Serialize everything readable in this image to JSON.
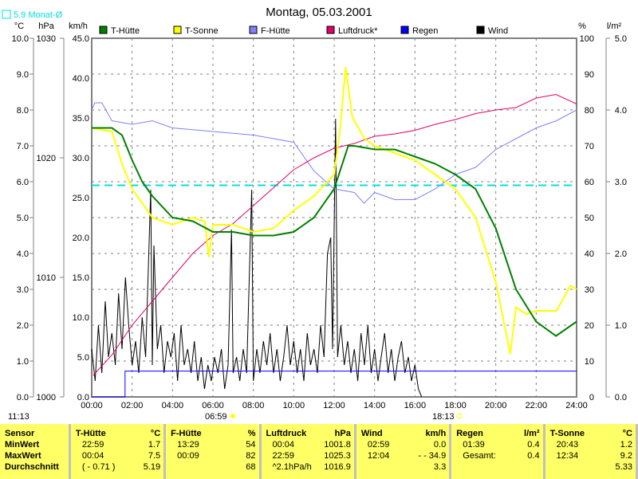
{
  "title": "Montag, 05.03.2001",
  "monthly_avg_label": "5.9 Monat-Ø",
  "colors": {
    "t_huette": "#008000",
    "t_sonne": "#ffff00",
    "f_huette": "#8080ff",
    "luftdruck": "#e0006a",
    "regen": "#0000ff",
    "wind": "#000000",
    "avg": "#00e0e0"
  },
  "time_left": "11:13",
  "sunrise": "06:59",
  "sunset": "18:13",
  "chart_data": {
    "type": "line",
    "title": "Montag, 05.03.2001",
    "legend": [
      "T-Hütte",
      "T-Sonne",
      "F-Hütte",
      "Luftdruck*",
      "Regen",
      "Wind"
    ],
    "legend_position": "top",
    "axes": {
      "celsius": {
        "label": "°C",
        "range": [
          0,
          10
        ],
        "ticks": [
          "0.0",
          "1.0",
          "2.0",
          "3.0",
          "4.0",
          "5.0",
          "6.0",
          "7.0",
          "8.0",
          "9.0",
          "10.0"
        ]
      },
      "hpa": {
        "label": "hPa",
        "range": [
          1000,
          1030
        ],
        "ticks": [
          "1000",
          "1010",
          "1020",
          "1030"
        ]
      },
      "kmh": {
        "label": "km/h",
        "range": [
          0,
          45
        ],
        "ticks": [
          "0.0",
          "5.0",
          "10.0",
          "15.0",
          "20.0",
          "25.0",
          "30.0",
          "35.0",
          "40.0",
          "45.0"
        ]
      },
      "percent": {
        "label": "%",
        "range": [
          0,
          100
        ],
        "ticks": [
          "0",
          "10",
          "20",
          "30",
          "40",
          "50",
          "60",
          "70",
          "80",
          "90",
          "100"
        ]
      },
      "lm2": {
        "label": "l/m²",
        "range": [
          0,
          5
        ],
        "ticks": [
          "0.0",
          "1.0",
          "2.0",
          "3.0",
          "4.0",
          "5.0"
        ]
      },
      "x": {
        "range": [
          0,
          24
        ],
        "ticks": [
          "00:00",
          "02:00",
          "04:00",
          "06:00",
          "08:00",
          "10:00",
          "12:00",
          "14:00",
          "16:00",
          "18:00",
          "20:00",
          "22:00",
          "24:00"
        ]
      }
    },
    "monthly_avg_celsius": 5.9,
    "series": [
      {
        "name": "T-Hütte",
        "axis": "celsius",
        "color": "#008000",
        "points": [
          [
            0,
            7.5
          ],
          [
            1,
            7.5
          ],
          [
            1.5,
            7.3
          ],
          [
            2,
            6.6
          ],
          [
            2.5,
            6.0
          ],
          [
            3,
            5.6
          ],
          [
            4,
            5.0
          ],
          [
            5,
            4.9
          ],
          [
            6,
            4.6
          ],
          [
            7,
            4.6
          ],
          [
            8,
            4.5
          ],
          [
            9,
            4.5
          ],
          [
            10,
            4.6
          ],
          [
            11,
            5.0
          ],
          [
            12,
            5.8
          ],
          [
            12.7,
            7.0
          ],
          [
            13,
            7.0
          ],
          [
            14,
            6.9
          ],
          [
            15,
            6.9
          ],
          [
            16,
            6.7
          ],
          [
            17,
            6.5
          ],
          [
            18,
            6.2
          ],
          [
            19,
            5.8
          ],
          [
            20,
            4.7
          ],
          [
            21,
            3.0
          ],
          [
            22,
            2.1
          ],
          [
            22.98,
            1.7
          ],
          [
            24,
            2.1
          ]
        ]
      },
      {
        "name": "T-Sonne",
        "axis": "celsius",
        "color": "#ffff00",
        "points": [
          [
            0,
            7.5
          ],
          [
            1,
            7.4
          ],
          [
            1.5,
            6.5
          ],
          [
            2,
            5.8
          ],
          [
            3,
            5.0
          ],
          [
            4,
            4.8
          ],
          [
            5,
            5.0
          ],
          [
            5.6,
            4.9
          ],
          [
            5.8,
            3.9
          ],
          [
            6,
            4.8
          ],
          [
            7,
            4.8
          ],
          [
            8,
            4.6
          ],
          [
            9,
            4.7
          ],
          [
            10,
            5.2
          ],
          [
            11,
            5.6
          ],
          [
            12,
            6.2
          ],
          [
            12.3,
            7.5
          ],
          [
            12.57,
            9.2
          ],
          [
            12.9,
            7.8
          ],
          [
            13.5,
            7.2
          ],
          [
            14,
            7.0
          ],
          [
            15,
            6.8
          ],
          [
            16,
            6.6
          ],
          [
            17,
            6.2
          ],
          [
            18,
            5.8
          ],
          [
            19,
            5.0
          ],
          [
            20,
            3.2
          ],
          [
            20.72,
            1.2
          ],
          [
            21,
            2.5
          ],
          [
            21.5,
            2.3
          ],
          [
            22,
            2.4
          ],
          [
            23,
            2.4
          ],
          [
            23.7,
            3.1
          ],
          [
            24,
            3.0
          ]
        ]
      },
      {
        "name": "F-Hütte",
        "axis": "percent",
        "color": "#8080ff",
        "points": [
          [
            0,
            80
          ],
          [
            0.15,
            82
          ],
          [
            0.5,
            82
          ],
          [
            1,
            77
          ],
          [
            2,
            76
          ],
          [
            3,
            77
          ],
          [
            4,
            75
          ],
          [
            6,
            74
          ],
          [
            8,
            73
          ],
          [
            10,
            71
          ],
          [
            11,
            63
          ],
          [
            12,
            58
          ],
          [
            13,
            57
          ],
          [
            13.48,
            54
          ],
          [
            14,
            57
          ],
          [
            15,
            55
          ],
          [
            16,
            55
          ],
          [
            17,
            58
          ],
          [
            18,
            62
          ],
          [
            19,
            64
          ],
          [
            20,
            69
          ],
          [
            21,
            72
          ],
          [
            22,
            75
          ],
          [
            23,
            77
          ],
          [
            24,
            80
          ]
        ]
      },
      {
        "name": "Luftdruck*",
        "axis": "hpa",
        "color": "#e0006a",
        "points": [
          [
            0.07,
            1001.8
          ],
          [
            1,
            1003.5
          ],
          [
            2,
            1006
          ],
          [
            3,
            1008
          ],
          [
            4,
            1010
          ],
          [
            5,
            1012
          ],
          [
            6,
            1013.5
          ],
          [
            7,
            1014.5
          ],
          [
            8,
            1016
          ],
          [
            9,
            1017.5
          ],
          [
            10,
            1019
          ],
          [
            11,
            1020
          ],
          [
            12,
            1020.8
          ],
          [
            13,
            1021.2
          ],
          [
            14,
            1021.8
          ],
          [
            15,
            1022
          ],
          [
            16,
            1022.3
          ],
          [
            17,
            1022.8
          ],
          [
            18,
            1023.2
          ],
          [
            19,
            1023.7
          ],
          [
            20,
            1024
          ],
          [
            21,
            1024.2
          ],
          [
            22,
            1025
          ],
          [
            22.98,
            1025.3
          ],
          [
            24,
            1024.5
          ]
        ]
      },
      {
        "name": "Regen",
        "axis": "lm2",
        "color": "#0000ff",
        "points": [
          [
            0,
            0
          ],
          [
            1.65,
            0
          ],
          [
            1.65,
            0.36
          ],
          [
            24,
            0.36
          ]
        ]
      },
      {
        "name": "Wind",
        "axis": "kmh",
        "color": "#000000",
        "points": [
          [
            0,
            6
          ],
          [
            0.17,
            2
          ],
          [
            0.33,
            9
          ],
          [
            0.5,
            3
          ],
          [
            0.67,
            12
          ],
          [
            0.83,
            5
          ],
          [
            1,
            8
          ],
          [
            1.17,
            4
          ],
          [
            1.33,
            13
          ],
          [
            1.5,
            6
          ],
          [
            1.67,
            15
          ],
          [
            1.83,
            9
          ],
          [
            2,
            4
          ],
          [
            2.17,
            7
          ],
          [
            2.33,
            3
          ],
          [
            2.5,
            10
          ],
          [
            2.67,
            5
          ],
          [
            2.92,
            26
          ],
          [
            3,
            4
          ],
          [
            3.08,
            19
          ],
          [
            3.25,
            6
          ],
          [
            3.42,
            9
          ],
          [
            3.58,
            3
          ],
          [
            3.75,
            7
          ],
          [
            3.92,
            5
          ],
          [
            4.08,
            8
          ],
          [
            4.25,
            2
          ],
          [
            4.42,
            9
          ],
          [
            4.58,
            4
          ],
          [
            4.75,
            6
          ],
          [
            4.92,
            3
          ],
          [
            5.08,
            7
          ],
          [
            5.25,
            2
          ],
          [
            5.42,
            5
          ],
          [
            5.58,
            1
          ],
          [
            5.75,
            4
          ],
          [
            5.92,
            2
          ],
          [
            6.08,
            5
          ],
          [
            6.25,
            3
          ],
          [
            6.42,
            6
          ],
          [
            6.58,
            1
          ],
          [
            6.75,
            4
          ],
          [
            6.92,
            21
          ],
          [
            7,
            3
          ],
          [
            7.17,
            5
          ],
          [
            7.33,
            2
          ],
          [
            7.5,
            6
          ],
          [
            7.67,
            3
          ],
          [
            7.92,
            26
          ],
          [
            8,
            2
          ],
          [
            8.17,
            6
          ],
          [
            8.33,
            3
          ],
          [
            8.5,
            7
          ],
          [
            8.67,
            4
          ],
          [
            8.83,
            8
          ],
          [
            9,
            3
          ],
          [
            9.17,
            6
          ],
          [
            9.33,
            2
          ],
          [
            9.5,
            5
          ],
          [
            9.67,
            9
          ],
          [
            9.83,
            4
          ],
          [
            10,
            7
          ],
          [
            10.17,
            3
          ],
          [
            10.33,
            6
          ],
          [
            10.5,
            2
          ],
          [
            10.67,
            8
          ],
          [
            10.83,
            4
          ],
          [
            11,
            6
          ],
          [
            11.17,
            3
          ],
          [
            11.33,
            9
          ],
          [
            11.5,
            5
          ],
          [
            11.67,
            18
          ],
          [
            11.83,
            20
          ],
          [
            11.92,
            6
          ],
          [
            12.07,
            34.9
          ],
          [
            12.17,
            5
          ],
          [
            12.33,
            9
          ],
          [
            12.5,
            4
          ],
          [
            12.67,
            7
          ],
          [
            12.83,
            3
          ],
          [
            13,
            6
          ],
          [
            13.17,
            2
          ],
          [
            13.33,
            8
          ],
          [
            13.5,
            4
          ],
          [
            13.67,
            9
          ],
          [
            13.83,
            3
          ],
          [
            14,
            6
          ],
          [
            14.17,
            2
          ],
          [
            14.33,
            5
          ],
          [
            14.5,
            8
          ],
          [
            14.67,
            3
          ],
          [
            14.83,
            6
          ],
          [
            15,
            2
          ],
          [
            15.17,
            5
          ],
          [
            15.33,
            7
          ],
          [
            15.5,
            3
          ],
          [
            15.67,
            5
          ],
          [
            15.83,
            2
          ],
          [
            16,
            4
          ],
          [
            16.17,
            1
          ],
          [
            16.33,
            0
          ]
        ]
      }
    ]
  },
  "stats": {
    "columns": [
      {
        "header": "Sensor",
        "unit": "",
        "rows": [
          [
            "MinWert",
            ""
          ],
          [
            "MaxWert",
            ""
          ],
          [
            "Durchschnitt",
            ""
          ]
        ],
        "label_col": true
      },
      {
        "header": "T-Hütte",
        "unit": "°C",
        "rows": [
          [
            "22:59",
            "1.7"
          ],
          [
            "00:04",
            "7.5"
          ],
          [
            "( - 0.71 )",
            "5.19"
          ]
        ]
      },
      {
        "header": "F-Hütte",
        "unit": "%",
        "rows": [
          [
            "13:29",
            "54"
          ],
          [
            "00:09",
            "82"
          ],
          [
            "",
            "68"
          ]
        ]
      },
      {
        "header": "Luftdruck",
        "unit": "hPa",
        "rows": [
          [
            "00:04",
            "1001.8"
          ],
          [
            "22:59",
            "1025.3"
          ],
          [
            "^2.1hPa/h",
            "1016.9"
          ]
        ]
      },
      {
        "header": "Wind",
        "unit": "km/h",
        "rows": [
          [
            "02:59",
            "0.0"
          ],
          [
            "12:04",
            "- - 34.9"
          ],
          [
            "",
            "3.3"
          ]
        ]
      },
      {
        "header": "Regen",
        "unit": "l/m²",
        "rows": [
          [
            "",
            ""
          ],
          [
            "01:39",
            "0.4"
          ],
          [
            "Gesamt:",
            "0.4"
          ]
        ]
      },
      {
        "header": "T-Sonne",
        "unit": "°C",
        "rows": [
          [
            "20:43",
            "1.2"
          ],
          [
            "12:34",
            "9.2"
          ],
          [
            "",
            "5.33"
          ]
        ]
      }
    ]
  }
}
